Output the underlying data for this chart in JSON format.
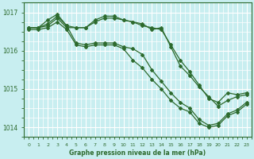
{
  "title": "Graphe pression niveau de la mer (hPa)",
  "xlabel_ticks": [
    "0",
    "1",
    "2",
    "3",
    "4",
    "5",
    "6",
    "7",
    "8",
    "9",
    "10",
    "11",
    "12",
    "13",
    "14",
    "15",
    "16",
    "17",
    "18",
    "19",
    "20",
    "21",
    "22",
    "23"
  ],
  "xlim": [
    -0.5,
    23.5
  ],
  "ylim": [
    1013.75,
    1017.25
  ],
  "yticks": [
    1014,
    1015,
    1016,
    1017
  ],
  "bg_color": "#c8eef0",
  "grid_color": "#ffffff",
  "line_color": "#2d6a2d",
  "marker": "D",
  "markersize": 2.0,
  "linewidth": 0.9,
  "series": [
    [
      1016.6,
      1016.6,
      1016.65,
      1016.85,
      1016.6,
      1016.6,
      1016.6,
      1016.75,
      1016.85,
      1016.85,
      1016.8,
      1016.75,
      1016.65,
      1016.6,
      1016.55,
      1016.15,
      1015.75,
      1015.45,
      1015.1,
      1014.75,
      1014.65,
      1014.9,
      1014.85,
      1014.9
    ],
    [
      1016.6,
      1016.6,
      1016.7,
      1016.9,
      1016.65,
      1016.6,
      1016.6,
      1016.8,
      1016.9,
      1016.9,
      1016.8,
      1016.75,
      1016.7,
      1016.55,
      1016.6,
      1016.1,
      1015.6,
      1015.35,
      1015.05,
      1014.8,
      1014.55,
      1014.7,
      1014.8,
      1014.85
    ],
    [
      1016.6,
      1016.6,
      1016.8,
      1016.95,
      1016.65,
      1016.2,
      1016.15,
      1016.2,
      1016.2,
      1016.2,
      1016.1,
      1016.05,
      1015.9,
      1015.5,
      1015.2,
      1014.9,
      1014.65,
      1014.5,
      1014.2,
      1014.05,
      1014.1,
      1014.35,
      1014.45,
      1014.65
    ],
    [
      1016.55,
      1016.55,
      1016.6,
      1016.75,
      1016.55,
      1016.15,
      1016.1,
      1016.15,
      1016.15,
      1016.15,
      1016.05,
      1015.75,
      1015.55,
      1015.25,
      1015.0,
      1014.7,
      1014.5,
      1014.4,
      1014.1,
      1014.0,
      1014.05,
      1014.3,
      1014.4,
      1014.6
    ]
  ]
}
